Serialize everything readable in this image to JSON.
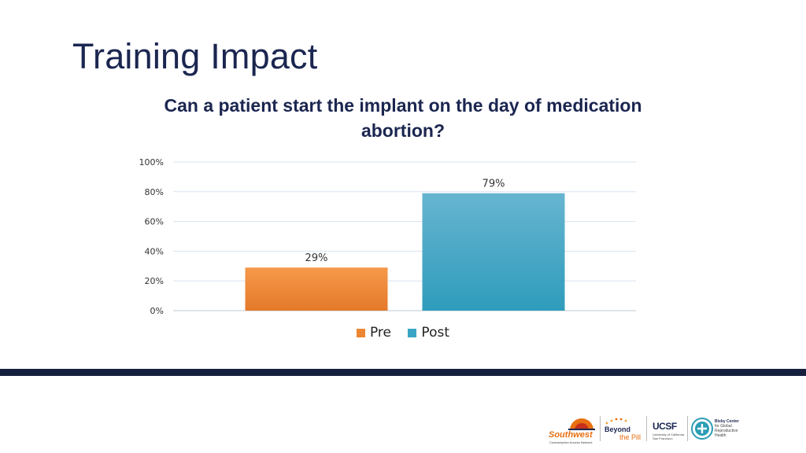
{
  "slide": {
    "title": "Training Impact"
  },
  "chart_data": {
    "type": "bar",
    "title": "Can a patient start the implant on the day of medication abortion?",
    "categories": [
      "Pre",
      "Post"
    ],
    "values": [
      29,
      79
    ],
    "value_labels": [
      "29%",
      "79%"
    ],
    "y_ticks": [
      "0%",
      "20%",
      "40%",
      "60%",
      "80%",
      "100%"
    ],
    "y_tick_values": [
      0,
      20,
      40,
      60,
      80,
      100
    ],
    "ylim": [
      0,
      100
    ],
    "unit": "%",
    "grid": true,
    "legend": [
      "Pre",
      "Post"
    ],
    "legend_position": "bottom",
    "colors": {
      "Pre": "#ec8632",
      "Post": "#3aa5c4"
    }
  },
  "footer": {
    "logos": {
      "southwest": "Southwest",
      "southwest_sub": "Contraception Access Network",
      "beyond_the_pill_1": "Beyond",
      "beyond_the_pill_2": "the Pill",
      "ucsf": "UCSF",
      "ucsf_sub": "University of California San Francisco",
      "bixby_1": "Bixby Center",
      "bixby_2": "for Global",
      "bixby_3": "Reproductive",
      "bixby_4": "Health"
    }
  },
  "colors": {
    "title": "#1b2650",
    "footer_bar": "#151f3e",
    "gridline": "#d9e3f0"
  }
}
